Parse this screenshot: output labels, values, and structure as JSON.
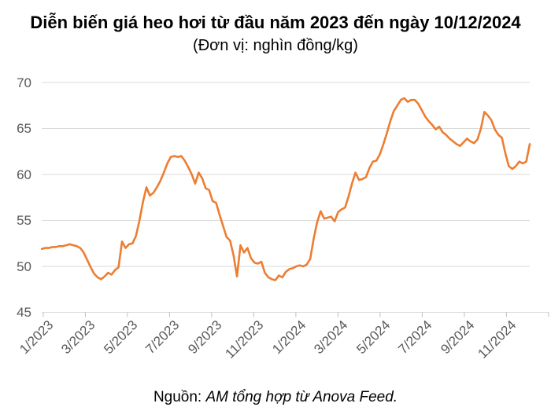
{
  "title": "Diễn biến giá heo hơi từ đầu năm 2023 đến ngày 10/12/2024",
  "subtitle": "(Đơn vị: nghìn đồng/kg)",
  "footer": {
    "prefix": "Nguồn: ",
    "source": "AM tổng hợp từ Anova Feed."
  },
  "chart_data": {
    "type": "line",
    "title": "Diễn biến giá heo hơi từ đầu năm 2023 đến ngày 10/12/2024",
    "unit": "nghìn đồng/kg",
    "series_name": "Giá heo hơi",
    "x_start": "1/1/2023",
    "x_end": "10/12/2024",
    "sample_interval_days": 5,
    "x_tick_labels": [
      "1/2023",
      "3/2023",
      "5/2023",
      "7/2023",
      "9/2023",
      "11/2023",
      "1/2024",
      "3/2024",
      "5/2024",
      "7/2024",
      "9/2024",
      "11/2024"
    ],
    "y_ticks": [
      45,
      50,
      55,
      60,
      65,
      70
    ],
    "ylim": [
      45,
      70
    ],
    "grid": "horizontal",
    "legend": "none",
    "line_color": "#ED7D31",
    "grid_color": "#D9D9D9",
    "tick_color": "#BFBFBF",
    "label_color": "#595959",
    "values": [
      51.9,
      52.0,
      52.0,
      52.1,
      52.1,
      52.2,
      52.2,
      52.3,
      52.4,
      52.3,
      52.2,
      52.0,
      51.5,
      50.7,
      49.9,
      49.2,
      48.8,
      48.6,
      48.9,
      49.3,
      49.1,
      49.6,
      49.9,
      52.7,
      52.0,
      52.4,
      52.5,
      53.3,
      55.0,
      57.0,
      58.6,
      57.7,
      58.0,
      58.6,
      59.3,
      60.2,
      61.2,
      61.9,
      62.0,
      61.9,
      62.0,
      61.5,
      60.8,
      60.0,
      59.0,
      60.2,
      59.6,
      58.5,
      58.3,
      57.1,
      56.9,
      55.6,
      54.4,
      53.2,
      52.8,
      51.2,
      48.9,
      52.3,
      51.5,
      52.0,
      50.9,
      50.4,
      50.3,
      50.5,
      49.3,
      48.8,
      48.6,
      48.5,
      49.0,
      48.8,
      49.4,
      49.7,
      49.8,
      50.0,
      50.1,
      50.0,
      50.2,
      50.8,
      53.0,
      54.8,
      56.0,
      55.2,
      55.3,
      55.4,
      54.9,
      55.9,
      56.2,
      56.4,
      57.6,
      59.0,
      60.2,
      59.4,
      59.5,
      59.7,
      60.7,
      61.4,
      61.5,
      62.2,
      63.3,
      64.5,
      65.8,
      66.9,
      67.5,
      68.1,
      68.3,
      67.9,
      68.1,
      68.1,
      67.7,
      67.0,
      66.3,
      65.8,
      65.4,
      64.9,
      65.2,
      64.6,
      64.3,
      63.9,
      63.6,
      63.3,
      63.1,
      63.5,
      63.9,
      63.6,
      63.4,
      63.8,
      65.0,
      66.8,
      66.4,
      65.9,
      64.9,
      64.3,
      64.0,
      62.3,
      60.9,
      60.6,
      60.9,
      61.4,
      61.2,
      61.4,
      63.3
    ]
  }
}
